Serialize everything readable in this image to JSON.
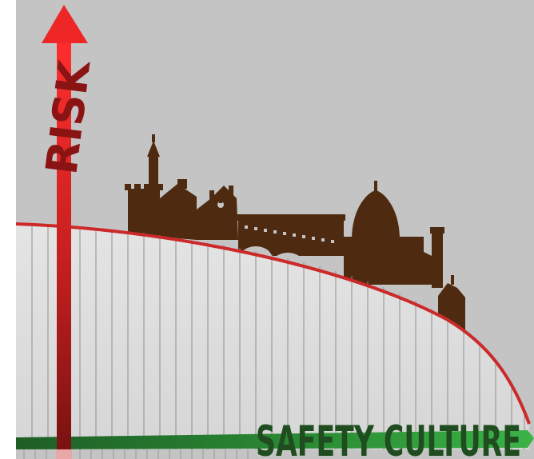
{
  "vertical_label": "RISK",
  "horizontal_label": "SAFETY CULTURE",
  "colors": {
    "background": "#c4c4c4",
    "area_fill": "#dcdcdc",
    "curve": "#cc2a2a",
    "arrow_red": "#e02424",
    "arrow_dark": "#8a1414",
    "skyline": "#4e2a10",
    "band_dark": "#1e5e26",
    "band_light": "#39a845",
    "text_green": "#1f4d1f"
  },
  "icons": [
    "risk-arrow-icon",
    "florence-skyline-icon",
    "safety-culture-arrow-icon"
  ]
}
